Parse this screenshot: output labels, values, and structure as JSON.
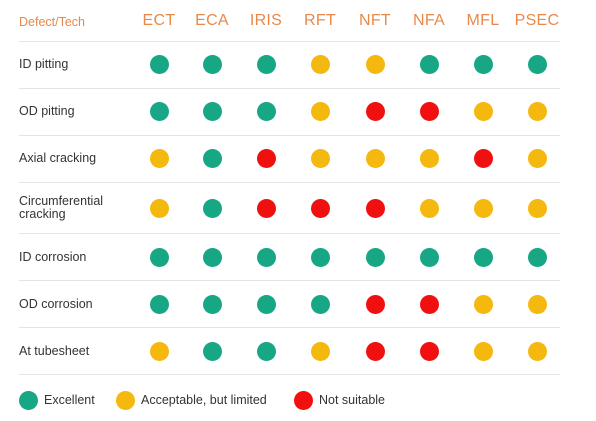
{
  "header": {
    "first": "Defect/Tech",
    "techs": [
      "ECT",
      "ECA",
      "IRIS",
      "RFT",
      "NFT",
      "NFA",
      "MFL",
      "PSEC"
    ]
  },
  "rows": [
    {
      "label": "ID pitting",
      "ratings": [
        "excellent",
        "excellent",
        "excellent",
        "acceptable",
        "acceptable",
        "excellent",
        "excellent",
        "excellent"
      ]
    },
    {
      "label": "OD pitting",
      "ratings": [
        "excellent",
        "excellent",
        "excellent",
        "acceptable",
        "not_suitable",
        "not_suitable",
        "acceptable",
        "acceptable"
      ]
    },
    {
      "label": "Axial cracking",
      "ratings": [
        "acceptable",
        "excellent",
        "not_suitable",
        "acceptable",
        "acceptable",
        "acceptable",
        "not_suitable",
        "acceptable"
      ]
    },
    {
      "label": "Circumferential cracking",
      "ratings": [
        "acceptable",
        "excellent",
        "not_suitable",
        "not_suitable",
        "not_suitable",
        "acceptable",
        "acceptable",
        "acceptable"
      ]
    },
    {
      "label": "ID corrosion",
      "ratings": [
        "excellent",
        "excellent",
        "excellent",
        "excellent",
        "excellent",
        "excellent",
        "excellent",
        "excellent"
      ]
    },
    {
      "label": "OD corrosion",
      "ratings": [
        "excellent",
        "excellent",
        "excellent",
        "excellent",
        "not_suitable",
        "not_suitable",
        "acceptable",
        "acceptable"
      ]
    },
    {
      "label": "At tubesheet",
      "ratings": [
        "acceptable",
        "excellent",
        "excellent",
        "acceptable",
        "not_suitable",
        "not_suitable",
        "acceptable",
        "acceptable"
      ]
    }
  ],
  "legend": [
    {
      "key": "excellent",
      "label": "Excellent"
    },
    {
      "key": "acceptable",
      "label": "Acceptable, but limited"
    },
    {
      "key": "not_suitable",
      "label": "Not suitable"
    }
  ],
  "colors": {
    "excellent": "#17A784",
    "acceptable": "#F5B80F",
    "not_suitable": "#F0100F",
    "header_text": "#E8894A"
  }
}
